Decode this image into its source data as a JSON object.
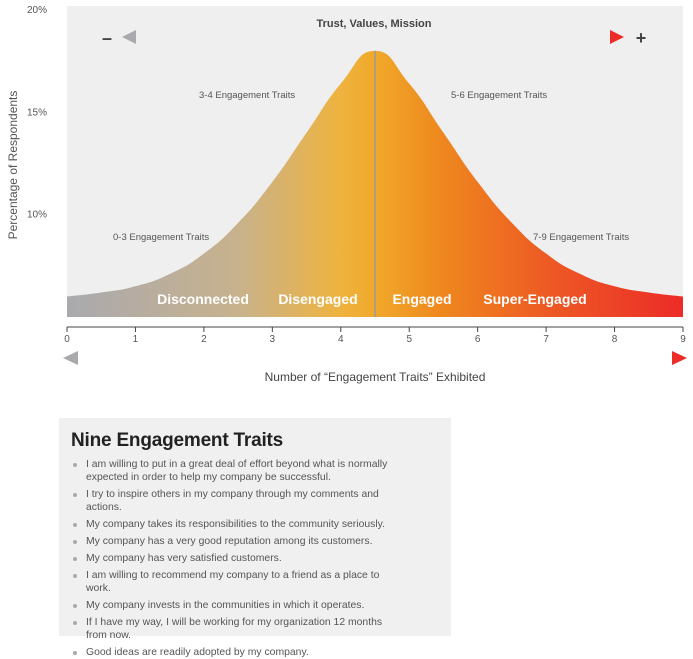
{
  "chart_data": {
    "type": "area",
    "ylabel": "Percentage of Respondents",
    "xlabel": "Number of “Engagement Traits” Exhibited",
    "y_ticks": [
      "20%",
      "15%",
      "10%"
    ],
    "x_ticks": [
      "0",
      "1",
      "2",
      "3",
      "4",
      "5",
      "6",
      "7",
      "8",
      "9"
    ],
    "xlim": [
      0,
      9
    ],
    "ylim": [
      5,
      20
    ],
    "grid": false,
    "distribution": {
      "x": [
        0,
        0.5,
        1,
        1.5,
        2,
        2.5,
        3,
        3.5,
        4,
        4.5,
        5,
        5.5,
        6,
        6.5,
        7,
        7.5,
        8,
        8.5,
        9
      ],
      "y": [
        6.0,
        6.2,
        6.5,
        7.1,
        8.1,
        9.6,
        11.6,
        14.0,
        16.4,
        18.0,
        16.4,
        14.0,
        11.6,
        9.6,
        8.1,
        7.1,
        6.5,
        6.2,
        6.0
      ]
    },
    "top_arrow": {
      "label": "Trust, Values, Mission",
      "minus": "–",
      "plus": "+"
    },
    "annotations": [
      "0-3 Engagement Traits",
      "3-4 Engagement Traits",
      "5-6 Engagement Traits",
      "7-9 Engagement Traits"
    ],
    "segments": [
      "Disconnected",
      "Disengaged",
      "Engaged",
      "Super-Engaged"
    ],
    "colors": {
      "gray": "#a9a9ae",
      "yellow": "#eeb340",
      "orange": "#ed8a1e",
      "red": "#ec2c27",
      "panel": "#efefef"
    }
  },
  "traits_box": {
    "title": "Nine Engagement Traits",
    "items": [
      "I am willing to put in a great deal of effort beyond what is normally expected in order to help my company be successful.",
      "I try to inspire others in my company through my comments and actions.",
      "My company takes its responsibilities to the community seriously.",
      "My company has a very good reputation among its customers.",
      "My company has very satisfied customers.",
      "I am willing to recommend my company to a friend as a place to work.",
      "My company invests in the communities in which it operates.",
      "If I have my way, I will be working for my organization 12 months from now.",
      "Good ideas are readily adopted by my company."
    ]
  }
}
